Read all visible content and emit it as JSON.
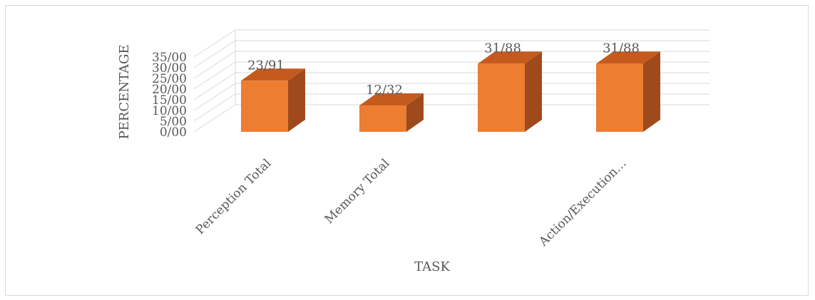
{
  "chart_data": {
    "type": "bar",
    "style": "3d-column",
    "categories": [
      "Perception Total",
      "Memory Total",
      "",
      "Action/Execution…"
    ],
    "values": [
      23.91,
      12.32,
      31.88,
      31.88
    ],
    "data_labels": [
      "23/91",
      "12/32",
      "31/88",
      "31/88"
    ],
    "xlabel": "TASK",
    "ylabel": "PERCENTAGE",
    "ylim": [
      0,
      35
    ],
    "yticks": [
      0,
      5,
      10,
      15,
      20,
      25,
      30,
      35
    ],
    "ytick_labels": [
      "0/00",
      "5/00",
      "10/00",
      "15/00",
      "20/00",
      "25/00",
      "30/00",
      "35/00"
    ],
    "grid": true,
    "legend": "none",
    "colors": {
      "front": "#ED7D31",
      "side": "#9E4A1C",
      "top": "#C55A1E",
      "grid": "#d9d9d9",
      "text": "#595959"
    }
  }
}
